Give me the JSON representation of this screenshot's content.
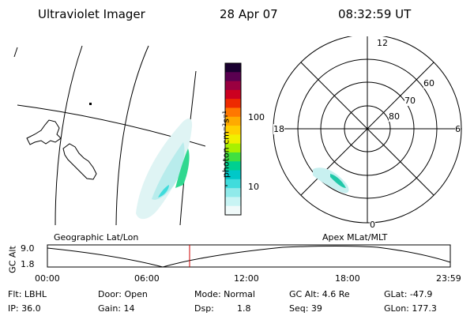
{
  "header": {
    "instrument": "Ultraviolet Imager",
    "date": "28 Apr 07",
    "time": "08:32:59 UT"
  },
  "geo_panel": {
    "label": "Geographic Lat/Lon"
  },
  "colorbar": {
    "unit_label": "photon cm⁻²s⁻¹",
    "ticks": [
      "100",
      "10"
    ],
    "colors": [
      "#1a0030",
      "#5a0050",
      "#9a0040",
      "#cc0020",
      "#ee2a00",
      "#ff7700",
      "#ffaa00",
      "#ffd000",
      "#f0f000",
      "#a8f000",
      "#40e040",
      "#00d090",
      "#00c8c8",
      "#40dcdc",
      "#90eaea",
      "#c8f4f4",
      "#f0fafa"
    ]
  },
  "polar_panel": {
    "label": "Apex MLat/MLT",
    "mlt_labels": [
      "12",
      "18",
      "6",
      "0"
    ],
    "lat_labels": [
      "60",
      "70",
      "80"
    ]
  },
  "timeline": {
    "y_label": "GC Alt",
    "y_ticks": [
      "9.0",
      "1.8"
    ],
    "x_ticks": [
      "00:00",
      "06:00",
      "12:00",
      "18:00",
      "23:59"
    ],
    "current_time_color": "#cc0000"
  },
  "info": {
    "filter": "Flt: LBHL",
    "door": "Door: Open",
    "mode": "Mode: Normal",
    "gc_alt": "GC Alt: 4.6 Re",
    "glat": "GLat: -47.9",
    "ip": "IP: 36.0",
    "gain": "Gain: 14",
    "dsp_label": "Dsp:",
    "dsp_value": "1.8",
    "seq": "Seq: 39",
    "glon": "GLon: 177.3"
  }
}
